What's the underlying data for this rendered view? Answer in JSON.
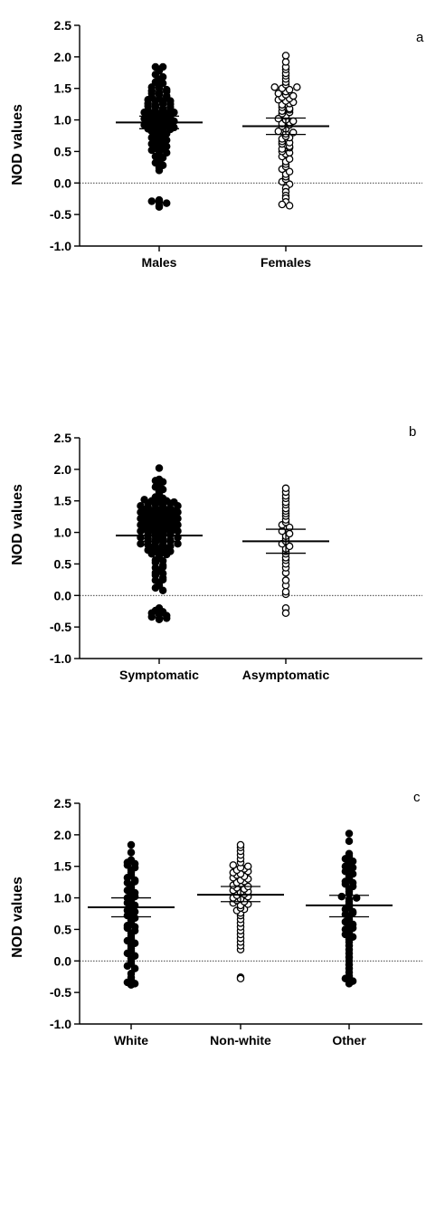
{
  "chart_data": [
    {
      "type": "scatter",
      "panel_label": "a",
      "ylabel": "NOD values",
      "ylim": [
        -1.0,
        2.5
      ],
      "yticks": [
        "2.5",
        "2.0",
        "1.5",
        "1.0",
        "0.5",
        "0.0",
        "-0.5",
        "-1.0"
      ],
      "reference_line": 0.0,
      "categories": [
        "Males",
        "Females"
      ],
      "series": [
        {
          "marker": "filled",
          "mean": 0.96,
          "ci": [
            0.86,
            1.06
          ],
          "values": [
            1.84,
            1.84,
            1.78,
            1.72,
            1.68,
            1.64,
            1.6,
            1.58,
            1.55,
            1.52,
            1.5,
            1.48,
            1.46,
            1.44,
            1.42,
            1.4,
            1.38,
            1.36,
            1.34,
            1.32,
            1.3,
            1.28,
            1.26,
            1.24,
            1.22,
            1.2,
            1.18,
            1.16,
            1.14,
            1.12,
            1.1,
            1.08,
            1.06,
            1.04,
            1.02,
            1.0,
            0.98,
            0.96,
            0.94,
            0.92,
            0.9,
            0.88,
            0.86,
            0.84,
            0.82,
            0.8,
            0.78,
            0.75,
            0.72,
            0.7,
            0.68,
            0.65,
            0.62,
            0.6,
            0.58,
            0.55,
            0.52,
            0.5,
            0.48,
            0.45,
            0.42,
            0.4,
            0.36,
            0.32,
            0.28,
            0.24,
            0.2,
            1.2,
            1.15,
            1.1,
            1.05,
            1.0,
            0.95,
            0.9,
            0.85,
            1.3,
            1.25,
            1.15,
            1.05,
            0.95,
            0.85,
            0.75,
            0.65,
            0.55,
            1.45,
            1.35,
            1.25,
            1.12,
            0.98,
            0.88,
            -0.27,
            -0.29,
            -0.3,
            -0.32,
            -0.36,
            -0.38
          ]
        },
        {
          "marker": "open",
          "mean": 0.9,
          "ci": [
            0.77,
            1.03
          ],
          "values": [
            2.02,
            1.92,
            1.84,
            1.8,
            1.74,
            1.7,
            1.65,
            1.6,
            1.56,
            1.52,
            1.5,
            1.48,
            1.45,
            1.42,
            1.4,
            1.36,
            1.32,
            1.3,
            1.28,
            1.24,
            1.2,
            1.18,
            1.14,
            1.1,
            1.06,
            1.02,
            1.0,
            0.98,
            0.94,
            0.9,
            0.86,
            0.82,
            0.78,
            0.74,
            0.7,
            0.66,
            0.62,
            0.58,
            0.54,
            0.5,
            0.46,
            0.42,
            0.38,
            0.34,
            0.3,
            0.26,
            0.22,
            0.18,
            0.14,
            0.1,
            0.06,
            0.02,
            -0.02,
            -0.08,
            -0.14,
            -0.2,
            -0.24,
            1.38,
            1.26,
            1.12,
            0.96,
            0.8,
            0.64,
            0.48,
            1.52,
            1.34,
            1.16,
            0.92,
            0.72,
            0.56,
            -0.3,
            -0.34,
            -0.36
          ]
        }
      ]
    },
    {
      "type": "scatter",
      "panel_label": "b",
      "ylabel": "NOD values",
      "ylim": [
        -1.0,
        2.5
      ],
      "yticks": [
        "2.5",
        "2.0",
        "1.5",
        "1.0",
        "0.5",
        "0.0",
        "-0.5",
        "-1.0"
      ],
      "reference_line": 0.0,
      "categories": [
        "Symptomatic",
        "Asymptomatic"
      ],
      "series": [
        {
          "marker": "filled",
          "mean": 0.95,
          "ci": [
            0.86,
            1.04
          ],
          "values": [
            2.02,
            1.84,
            1.82,
            1.8,
            1.76,
            1.72,
            1.68,
            1.64,
            1.6,
            1.56,
            1.54,
            1.52,
            1.5,
            1.48,
            1.46,
            1.44,
            1.42,
            1.4,
            1.38,
            1.36,
            1.34,
            1.32,
            1.3,
            1.28,
            1.26,
            1.24,
            1.22,
            1.2,
            1.18,
            1.16,
            1.14,
            1.12,
            1.1,
            1.08,
            1.06,
            1.04,
            1.02,
            1.0,
            0.98,
            0.96,
            0.94,
            0.92,
            0.9,
            0.88,
            0.86,
            0.84,
            0.82,
            0.8,
            0.78,
            0.76,
            0.74,
            0.72,
            0.7,
            0.68,
            0.66,
            0.64,
            0.6,
            0.56,
            0.52,
            0.48,
            0.44,
            0.4,
            0.36,
            0.32,
            0.28,
            0.24,
            0.2,
            0.16,
            0.12,
            0.08,
            1.5,
            1.45,
            1.4,
            1.35,
            1.3,
            1.25,
            1.2,
            1.15,
            1.1,
            1.05,
            1.0,
            0.95,
            0.9,
            0.85,
            0.8,
            0.75,
            0.7,
            0.65,
            0.55,
            0.45,
            0.35,
            0.25,
            1.48,
            1.38,
            1.28,
            1.18,
            1.08,
            0.98,
            0.88,
            0.78,
            1.42,
            1.32,
            1.22,
            1.12,
            1.02,
            0.92,
            0.82,
            1.46,
            1.36,
            1.26,
            1.16,
            1.06,
            0.96,
            0.86,
            1.34,
            1.24,
            1.14,
            1.04,
            -0.2,
            -0.24,
            -0.26,
            -0.28,
            -0.3,
            -0.32,
            -0.34,
            -0.36,
            -0.36,
            -0.38
          ]
        },
        {
          "marker": "open",
          "mean": 0.86,
          "ci": [
            0.67,
            1.05
          ],
          "values": [
            1.7,
            1.64,
            1.58,
            1.54,
            1.48,
            1.44,
            1.38,
            1.34,
            1.3,
            1.26,
            1.2,
            1.16,
            1.12,
            1.08,
            1.02,
            0.98,
            0.94,
            0.9,
            0.86,
            0.82,
            0.78,
            0.74,
            0.7,
            0.66,
            0.6,
            0.56,
            0.5,
            0.44,
            0.36,
            0.24,
            0.16,
            0.06,
            0.02,
            -0.2,
            -0.28
          ]
        }
      ]
    },
    {
      "type": "scatter",
      "panel_label": "c",
      "ylabel": "NOD values",
      "ylim": [
        -1.0,
        2.5
      ],
      "yticks": [
        "2.5",
        "2.0",
        "1.5",
        "1.0",
        "0.5",
        "0.0",
        "-0.5",
        "-1.0"
      ],
      "reference_line": 0.0,
      "categories": [
        "White",
        "Non-white",
        "Other"
      ],
      "series": [
        {
          "marker": "filled",
          "mean": 0.85,
          "ci": [
            0.7,
            1.0
          ],
          "values": [
            1.84,
            1.72,
            1.6,
            1.56,
            1.52,
            1.48,
            1.44,
            1.4,
            1.36,
            1.32,
            1.28,
            1.24,
            1.2,
            1.16,
            1.12,
            1.08,
            1.04,
            1.0,
            0.96,
            0.92,
            0.88,
            0.84,
            0.8,
            0.76,
            0.72,
            0.68,
            0.64,
            0.6,
            0.56,
            0.52,
            0.48,
            0.44,
            0.4,
            0.36,
            0.32,
            0.28,
            0.24,
            0.2,
            0.16,
            0.12,
            0.08,
            0.04,
            0.0,
            -0.04,
            -0.08,
            -0.12,
            1.54,
            1.26,
            1.02,
            0.78,
            0.54,
            -0.2,
            -0.26,
            -0.3,
            -0.34,
            -0.36,
            -0.38
          ]
        },
        {
          "marker": "open",
          "mean": 1.05,
          "ci": [
            0.94,
            1.18
          ],
          "values": [
            1.84,
            1.8,
            1.74,
            1.68,
            1.62,
            1.56,
            1.52,
            1.48,
            1.44,
            1.4,
            1.36,
            1.32,
            1.28,
            1.24,
            1.2,
            1.16,
            1.12,
            1.08,
            1.04,
            1.0,
            0.96,
            0.92,
            0.88,
            0.84,
            0.8,
            0.76,
            0.72,
            0.66,
            0.6,
            0.54,
            0.48,
            0.42,
            0.36,
            0.3,
            0.24,
            0.18,
            1.5,
            1.46,
            1.38,
            1.3,
            1.22,
            1.14,
            1.06,
            0.98,
            0.9,
            0.82,
            1.42,
            1.34,
            1.26,
            1.18,
            1.1,
            1.02,
            0.94,
            -0.26,
            -0.28
          ]
        },
        {
          "marker": "filled",
          "mean": 0.88,
          "ci": [
            0.7,
            1.04
          ],
          "values": [
            2.02,
            1.9,
            1.7,
            1.66,
            1.62,
            1.58,
            1.54,
            1.5,
            1.46,
            1.42,
            1.38,
            1.34,
            1.3,
            1.26,
            1.22,
            1.18,
            1.14,
            1.1,
            1.06,
            1.02,
            0.98,
            0.94,
            0.9,
            0.86,
            0.82,
            0.78,
            0.74,
            0.7,
            0.66,
            0.62,
            0.58,
            0.54,
            0.5,
            0.46,
            0.42,
            0.38,
            0.34,
            0.3,
            0.24,
            0.18,
            0.12,
            0.06,
            0.0,
            -0.06,
            -0.12,
            -0.18,
            1.48,
            1.24,
            1.0,
            0.76,
            0.52,
            -0.24,
            -0.28,
            -0.32,
            -0.36
          ]
        }
      ]
    }
  ]
}
